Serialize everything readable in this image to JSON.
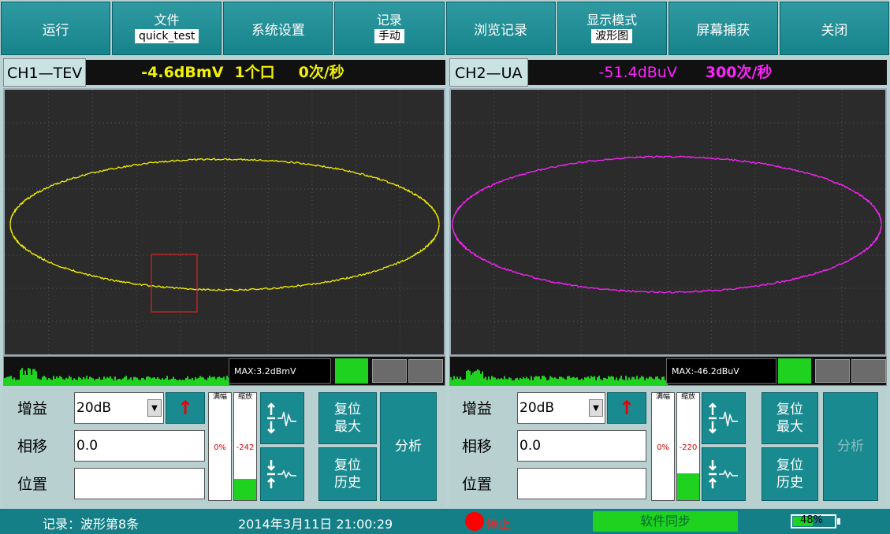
{
  "menu": {
    "run": "运行",
    "file_top": "文件",
    "file_value": "quick_test",
    "settings": "系统设置",
    "record_top": "记录",
    "record_value": "手动",
    "browse": "浏览记录",
    "display_top": "显示模式",
    "display_value": "波形图",
    "capture": "屏幕捕获",
    "close": "关闭"
  },
  "ch1": {
    "name": "CH1—TEV",
    "level": "-4.6dBmV",
    "count": "1个口",
    "rate": "0次/秒",
    "max": "MAX:3.2dBmV",
    "trace_color": "#f0f000",
    "gain_label": "增益",
    "gain_value": "20dB",
    "phase_label": "相移",
    "phase_value": "0.0",
    "pos_label": "位置",
    "pos_value": "",
    "meter1_title": "满幅",
    "meter1_value": "0%",
    "meter2_title": "缩放",
    "meter2_value": "-242",
    "reset_max": "复位最大",
    "reset_max_l1": "复位",
    "reset_max_l2": "最大",
    "reset_hist_l1": "复位",
    "reset_hist_l2": "历史",
    "analyze": "分析",
    "meter2_level": 0.2
  },
  "ch2": {
    "name": "CH2—UA",
    "level": "-51.4dBuV",
    "rate": "300次/秒",
    "max": "MAX:-46.2dBuV",
    "trace_color": "#ff22ff",
    "gain_label": "增益",
    "gain_value": "20dB",
    "phase_label": "相移",
    "phase_value": "0.0",
    "pos_label": "位置",
    "pos_value": "",
    "meter1_title": "满幅",
    "meter1_value": "0%",
    "meter2_title": "缩放",
    "meter2_value": "-220",
    "reset_max_l1": "复位",
    "reset_max_l2": "最大",
    "reset_hist_l1": "复位",
    "reset_hist_l2": "历史",
    "analyze": "分析",
    "meter2_level": 0.25
  },
  "status": {
    "record": "记录：波形第8条",
    "datetime": "2014年3月11日 21:00:29",
    "stop": "停止",
    "sync": "软件同步",
    "battery": "48%",
    "battery_level": 0.48
  }
}
